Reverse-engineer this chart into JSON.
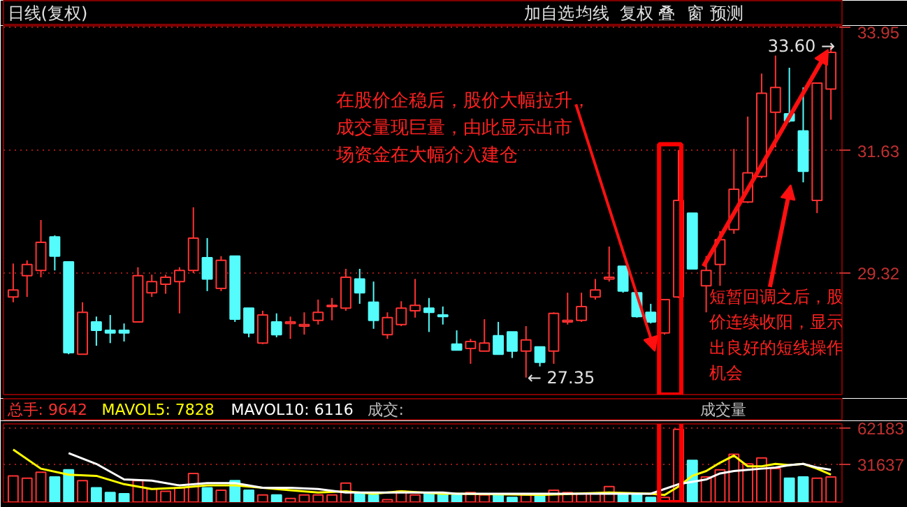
{
  "chart_data": [
    {
      "type": "candlestick",
      "title": "日线(复权)",
      "tick_labels": "y",
      "grid": "y",
      "categories": [
        null,
        null,
        null,
        null,
        null,
        null,
        null,
        null,
        null,
        null,
        null,
        null,
        null,
        null,
        null,
        null,
        null,
        null,
        null,
        null,
        null,
        null,
        null,
        null,
        null,
        null,
        null,
        null,
        null,
        null,
        null,
        null,
        null,
        null,
        null,
        null,
        null,
        null,
        null,
        null,
        null,
        null,
        null,
        null,
        null,
        null,
        null,
        null,
        null,
        null,
        null,
        null,
        null,
        null,
        null,
        null,
        null,
        null,
        null,
        null
      ],
      "ohlc": [
        [
          28.87,
          29.5,
          28.77,
          29.0
        ],
        [
          29.27,
          29.56,
          28.87,
          29.48
        ],
        [
          29.37,
          30.32,
          29.24,
          29.9
        ],
        [
          30.0,
          30.03,
          29.37,
          29.64
        ],
        [
          29.53,
          29.53,
          27.79,
          27.82
        ],
        [
          27.79,
          28.77,
          27.79,
          28.58
        ],
        [
          28.4,
          28.5,
          27.95,
          28.24
        ],
        [
          28.24,
          28.53,
          28.0,
          28.19
        ],
        [
          28.24,
          28.37,
          28.03,
          28.19
        ],
        [
          28.4,
          29.43,
          28.4,
          29.27
        ],
        [
          28.95,
          29.29,
          28.87,
          29.16
        ],
        [
          29.11,
          29.29,
          28.93,
          29.24
        ],
        [
          29.16,
          29.43,
          28.56,
          29.37
        ],
        [
          29.37,
          30.56,
          29.32,
          29.98
        ],
        [
          29.61,
          29.98,
          28.98,
          29.21
        ],
        [
          29.03,
          29.64,
          28.98,
          29.56
        ],
        [
          29.64,
          29.64,
          28.4,
          28.45
        ],
        [
          28.66,
          28.66,
          28.11,
          28.19
        ],
        [
          28.0,
          28.61,
          27.98,
          28.53
        ],
        [
          28.4,
          28.56,
          28.11,
          28.16
        ],
        [
          28.37,
          28.5,
          28.08,
          28.4
        ],
        [
          28.32,
          28.58,
          28.16,
          28.35
        ],
        [
          28.43,
          28.82,
          28.35,
          28.58
        ],
        [
          28.69,
          28.85,
          28.43,
          28.71
        ],
        [
          28.66,
          29.4,
          28.61,
          29.24
        ],
        [
          29.21,
          29.4,
          28.74,
          28.95
        ],
        [
          28.77,
          29.16,
          28.27,
          28.43
        ],
        [
          28.16,
          28.58,
          28.08,
          28.48
        ],
        [
          28.35,
          28.79,
          28.32,
          28.66
        ],
        [
          28.61,
          29.21,
          28.48,
          28.71
        ],
        [
          28.66,
          28.85,
          28.21,
          28.58
        ],
        [
          28.53,
          28.69,
          28.35,
          28.5
        ],
        [
          27.98,
          28.24,
          27.87,
          27.87
        ],
        [
          27.9,
          28.08,
          27.61,
          28.03
        ],
        [
          27.85,
          28.45,
          27.85,
          28.0
        ],
        [
          28.14,
          28.4,
          27.79,
          27.79
        ],
        [
          28.21,
          28.21,
          27.72,
          27.85
        ],
        [
          27.85,
          28.32,
          27.35,
          28.06
        ],
        [
          27.93,
          27.93,
          27.56,
          27.64
        ],
        [
          27.85,
          28.58,
          27.61,
          28.56
        ],
        [
          28.4,
          28.95,
          28.35,
          28.43
        ],
        [
          28.43,
          28.95,
          28.4,
          28.69
        ],
        [
          28.87,
          29.21,
          28.82,
          29.0
        ],
        [
          29.21,
          29.82,
          29.16,
          29.24
        ],
        [
          29.45,
          29.45,
          28.95,
          28.98
        ],
        [
          28.95,
          28.95,
          28.48,
          28.5
        ],
        [
          28.58,
          28.74,
          28.37,
          28.4
        ],
        [
          28.19,
          28.82,
          28.16,
          28.82
        ],
        [
          28.87,
          31.64,
          28.85,
          30.69
        ],
        [
          30.45,
          30.45,
          29.4,
          29.4
        ],
        [
          29.08,
          29.64,
          28.58,
          29.37
        ],
        [
          29.48,
          30.11,
          29.08,
          29.95
        ],
        [
          30.14,
          31.66,
          30.06,
          30.9
        ],
        [
          30.66,
          32.27,
          30.64,
          31.21
        ],
        [
          31.14,
          33.08,
          31.11,
          32.71
        ],
        [
          32.35,
          33.42,
          31.69,
          32.82
        ],
        [
          32.32,
          33.19,
          32.16,
          32.19
        ],
        [
          32.0,
          32.82,
          31.03,
          31.24
        ],
        [
          30.69,
          32.9,
          30.45,
          32.9
        ],
        [
          32.79,
          33.6,
          32.21,
          33.48
        ]
      ],
      "colors": [
        "#ff3232",
        "#ff3232",
        "#ff3232",
        "#54fcfc",
        "#54fcfc",
        "#ff3232",
        "#54fcfc",
        "#54fcfc",
        "#54fcfc",
        "#ff3232",
        "#ff3232",
        "#ff3232",
        "#ff3232",
        "#ff3232",
        "#54fcfc",
        "#ff3232",
        "#54fcfc",
        "#54fcfc",
        "#ff3232",
        "#54fcfc",
        "#ff3232",
        "#ff3232",
        "#ff3232",
        "#ff3232",
        "#ff3232",
        "#54fcfc",
        "#54fcfc",
        "#ff3232",
        "#ff3232",
        "#ff3232",
        "#54fcfc",
        "#54fcfc",
        "#54fcfc",
        "#ff3232",
        "#ff3232",
        "#54fcfc",
        "#54fcfc",
        "#ff3232",
        "#54fcfc",
        "#ff3232",
        "#ff3232",
        "#ff3232",
        "#ff3232",
        "#ff3232",
        "#54fcfc",
        "#54fcfc",
        "#54fcfc",
        "#ff3232",
        "#ff3232",
        "#54fcfc",
        "#ff3232",
        "#ff3232",
        "#ff3232",
        "#ff3232",
        "#ff3232",
        "#ff3232",
        "#54fcfc",
        "#54fcfc",
        "#ff3232",
        "#ff3232"
      ],
      "ylim": [
        27.03,
        33.98
      ],
      "yticks": [
        29.32,
        31.63,
        33.95
      ],
      "annotations": [
        "在股价企稳后，股价大幅拉升，成交量现巨量，由此显示出市场资金在大幅介入建仓",
        "短暂回调之后，股价连续收阳，显示出良好的短线操作机会",
        "33.60 →",
        "← 27.35",
        "加自选",
        "均线",
        "复权",
        "叠",
        "窗",
        "预测"
      ]
    },
    {
      "type": "bar",
      "tick_labels": "y",
      "grid": "y",
      "legend": "top left",
      "categories": [
        null,
        null,
        null,
        null,
        null,
        null,
        null,
        null,
        null,
        null,
        null,
        null,
        null,
        null,
        null,
        null,
        null,
        null,
        null,
        null,
        null,
        null,
        null,
        null,
        null,
        null,
        null,
        null,
        null,
        null,
        null,
        null,
        null,
        null,
        null,
        null,
        null,
        null,
        null,
        null,
        null,
        null,
        null,
        null,
        null,
        null,
        null,
        null,
        null,
        null,
        null,
        null,
        null,
        null,
        null,
        null,
        null,
        null,
        null,
        null
      ],
      "series": [
        {
          "name": "总手: 9642",
          "type": "bar",
          "colors": [
            "#ff3232",
            "#ff3232",
            "#ff3232",
            "#54fcfc",
            "#54fcfc",
            "#ff3232",
            "#54fcfc",
            "#54fcfc",
            "#54fcfc",
            "#ff3232",
            "#ff3232",
            "#ff3232",
            "#ff3232",
            "#ff3232",
            "#54fcfc",
            "#ff3232",
            "#54fcfc",
            "#54fcfc",
            "#ff3232",
            "#54fcfc",
            "#ff3232",
            "#ff3232",
            "#ff3232",
            "#ff3232",
            "#ff3232",
            "#54fcfc",
            "#54fcfc",
            "#ff3232",
            "#ff3232",
            "#ff3232",
            "#54fcfc",
            "#54fcfc",
            "#54fcfc",
            "#ff3232",
            "#ff3232",
            "#54fcfc",
            "#54fcfc",
            "#ff3232",
            "#54fcfc",
            "#ff3232",
            "#ff3232",
            "#ff3232",
            "#ff3232",
            "#ff3232",
            "#54fcfc",
            "#54fcfc",
            "#54fcfc",
            "#ff3232",
            "#ff3232",
            "#54fcfc",
            "#ff3232",
            "#ff3232",
            "#ff3232",
            "#ff3232",
            "#ff3232",
            "#ff3232",
            "#54fcfc",
            "#54fcfc",
            "#ff3232",
            "#ff3232"
          ],
          "values": [
            22000,
            20000,
            25000,
            21000,
            27000,
            18000,
            12000,
            8000,
            7000,
            18000,
            11000,
            9000,
            12000,
            24000,
            12000,
            10000,
            18000,
            10000,
            6000,
            6000,
            3000,
            6000,
            6000,
            6000,
            16000,
            7000,
            6000,
            2000,
            9000,
            6000,
            7000,
            7000,
            6000,
            8000,
            6000,
            6000,
            4000,
            6000,
            6000,
            10000,
            8000,
            7000,
            7000,
            13000,
            7000,
            7000,
            4000,
            4000,
            61000,
            35000,
            21000,
            27000,
            40000,
            32000,
            37000,
            28000,
            20000,
            21000,
            20000,
            21000
          ]
        },
        {
          "name": "MAVOL5: 7828",
          "type": "line",
          "color": "#ffff00",
          "values": [
            44000,
            null,
            28000,
            null,
            23000,
            null,
            22000,
            null,
            15000,
            null,
            11000,
            null,
            12000,
            null,
            14000,
            null,
            14000,
            null,
            12000,
            null,
            10000,
            null,
            8000,
            null,
            9000,
            null,
            7000,
            null,
            9000,
            null,
            null,
            7000,
            7000,
            null,
            null,
            null,
            null,
            null,
            6000,
            null,
            null,
            null,
            null,
            8000,
            null,
            null,
            7000,
            6000,
            13000,
            22000,
            26000,
            33000,
            39000,
            30000,
            30000,
            32000,
            31000,
            32000,
            28000,
            23000
          ]
        },
        {
          "name": "MAVOL10: 6116",
          "type": "line",
          "color": "#ffffff",
          "values": [
            null,
            null,
            null,
            null,
            41000,
            null,
            32000,
            null,
            19000,
            null,
            18000,
            null,
            14000,
            null,
            16000,
            null,
            16000,
            null,
            12000,
            null,
            12000,
            null,
            11000,
            null,
            8000,
            null,
            8000,
            null,
            8000,
            null,
            null,
            8000,
            7000,
            null,
            null,
            null,
            null,
            null,
            null,
            null,
            null,
            null,
            null,
            null,
            null,
            null,
            7000,
            null,
            15000,
            17000,
            19000,
            24000,
            26000,
            27000,
            28000,
            29000,
            31000,
            32000,
            29000,
            27000
          ]
        }
      ],
      "ylim": [
        0,
        65500
      ],
      "yticks": [
        31637,
        62183
      ],
      "annotations": [
        "成交:",
        "成交量"
      ]
    }
  ]
}
